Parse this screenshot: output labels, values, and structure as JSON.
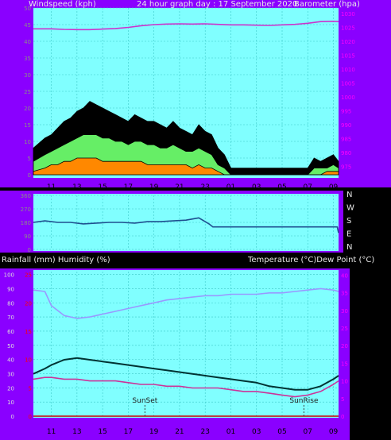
{
  "colors": {
    "background": "#000000",
    "frame": "#8a00ff",
    "plot_bg": "#80ffff",
    "grid": "#3cc8c8",
    "left_ticks": "#8a8a8a",
    "right_ticks": "#ff00ff",
    "rain_ticks": "#ff0000",
    "header_text": "#e8e8e8",
    "axis_text": "#000000"
  },
  "top_panel": {
    "left_title": "Windspeed (kph)",
    "center_title": "24 hour graph day : 17 September 2020",
    "right_title": "Barometer (hpa)"
  },
  "middle_panel": {
    "compass": [
      "N",
      "W",
      "S",
      "E",
      "N"
    ]
  },
  "bottom_panel": {
    "left_title": "Rainfall (mm)  Humidity (%)",
    "right_title": "Temperature (°C)Dew Point (°C)",
    "sunset_label": "SunSet",
    "sunrise_label": "SunRise"
  },
  "chart_data": [
    {
      "type": "line",
      "title": "",
      "y_left_label": "Windspeed (kph)",
      "y_right_label": "Barometer (hpa)",
      "x_hours": [
        "11",
        "13",
        "15",
        "17",
        "19",
        "21",
        "23",
        "01",
        "03",
        "05",
        "07",
        "09"
      ],
      "ylim_left": [
        0,
        50
      ],
      "yticks_left": [
        0,
        5,
        10,
        15,
        20,
        25,
        30,
        35,
        40,
        45,
        50
      ],
      "ylim_right": [
        972,
        1032
      ],
      "yticks_right": [
        975,
        980,
        985,
        990,
        995,
        1000,
        1005,
        1010,
        1015,
        1020,
        1025,
        1030
      ],
      "series": [
        {
          "name": "Barometer",
          "color": "#cc33cc",
          "axis": "right",
          "x": [
            9.6,
            11,
            12,
            13,
            14,
            15,
            16,
            17,
            18,
            19,
            20,
            21,
            22,
            23,
            24,
            25,
            26,
            27,
            28,
            29,
            30,
            31,
            32,
            33,
            33.4
          ],
          "y": [
            1024.5,
            1024.5,
            1024.3,
            1024.2,
            1024.2,
            1024.4,
            1024.6,
            1025,
            1025.6,
            1026,
            1026.2,
            1026.3,
            1026.2,
            1026.3,
            1026.1,
            1025.9,
            1025.9,
            1025.8,
            1025.7,
            1025.9,
            1026.1,
            1026.5,
            1027.1,
            1027.2,
            1027.1
          ]
        },
        {
          "name": "Wind Gust",
          "color": "#000000",
          "axis": "left",
          "x": [
            9.6,
            10.5,
            11,
            11.5,
            12,
            12.5,
            13,
            13.5,
            14,
            14.5,
            15,
            15.5,
            16,
            16.5,
            17,
            17.5,
            18,
            18.5,
            19,
            19.5,
            20,
            20.5,
            21,
            21.5,
            22,
            22.5,
            23,
            23.5,
            24,
            24.5,
            25,
            25.5,
            26,
            26.5,
            27,
            27.5,
            28,
            28.5,
            29,
            29.5,
            30,
            30.5,
            31,
            31.5,
            32,
            32.5,
            33,
            33.4
          ],
          "y": [
            8,
            11,
            12,
            14,
            16,
            17,
            19,
            20,
            22,
            21,
            20,
            19,
            18,
            17,
            16,
            18,
            17,
            16,
            16,
            15,
            14,
            16,
            14,
            13,
            12,
            15,
            13,
            12,
            8,
            6,
            2,
            2,
            2,
            2,
            2,
            2,
            2,
            2,
            2,
            2,
            2,
            2,
            2,
            5,
            4,
            5,
            6,
            4
          ]
        },
        {
          "name": "Wind Average",
          "color": "#66ee66",
          "axis": "left",
          "x": [
            9.6,
            10.5,
            11,
            11.5,
            12,
            12.5,
            13,
            13.5,
            14,
            14.5,
            15,
            15.5,
            16,
            16.5,
            17,
            17.5,
            18,
            18.5,
            19,
            19.5,
            20,
            20.5,
            21,
            21.5,
            22,
            22.5,
            23,
            23.5,
            24,
            24.5,
            25,
            25.5,
            26,
            26.5,
            27,
            27.5,
            28,
            28.5,
            29,
            29.5,
            30,
            30.5,
            31,
            31.5,
            32,
            32.5,
            33,
            33.4
          ],
          "y": [
            4,
            6,
            7,
            8,
            9,
            10,
            11,
            12,
            12,
            12,
            11,
            11,
            10,
            10,
            9,
            10,
            10,
            9,
            9,
            8,
            8,
            9,
            8,
            7,
            7,
            8,
            7,
            6,
            3,
            2,
            0,
            0,
            0,
            0,
            0,
            0,
            0,
            0,
            0,
            0,
            0,
            0,
            0,
            2,
            2,
            2,
            3,
            2
          ]
        },
        {
          "name": "Wind Lull",
          "color": "#ff8800",
          "axis": "left",
          "x": [
            9.6,
            10.5,
            11,
            11.5,
            12,
            12.5,
            13,
            13.5,
            14,
            14.5,
            15,
            15.5,
            16,
            16.5,
            17,
            17.5,
            18,
            18.5,
            19,
            19.5,
            20,
            20.5,
            21,
            21.5,
            22,
            22.5,
            23,
            23.5,
            24,
            24.5,
            25,
            25.5,
            26,
            26.5,
            27,
            27.5,
            28,
            28.5,
            29,
            29.5,
            30,
            30.5,
            31,
            31.5,
            32,
            32.5,
            33,
            33.4
          ],
          "y": [
            1,
            2,
            3,
            3,
            4,
            4,
            5,
            5,
            5,
            5,
            4,
            4,
            4,
            4,
            4,
            4,
            4,
            3,
            3,
            3,
            3,
            3,
            3,
            3,
            2,
            3,
            2,
            2,
            1,
            0,
            0,
            0,
            0,
            0,
            0,
            0,
            0,
            0,
            0,
            0,
            0,
            0,
            0,
            0,
            0,
            1,
            1,
            1
          ]
        }
      ]
    },
    {
      "type": "line",
      "title": "",
      "ylim": [
        0,
        360
      ],
      "yticks": [
        0,
        90,
        180,
        270,
        360
      ],
      "series": [
        {
          "name": "Wind Direction",
          "color": "#1f4f8f",
          "x": [
            9.6,
            10.5,
            11.5,
            12.5,
            13.5,
            14.5,
            15.5,
            16.5,
            17.5,
            18.5,
            19.5,
            20.5,
            21.5,
            22.5,
            23,
            23.3,
            23.6,
            24,
            25,
            26,
            27,
            28,
            29,
            30,
            31,
            32,
            33,
            33.3,
            33.4
          ],
          "y": [
            180,
            190,
            180,
            180,
            170,
            175,
            180,
            180,
            175,
            185,
            185,
            190,
            195,
            210,
            185,
            170,
            150,
            150,
            150,
            150,
            150,
            150,
            150,
            150,
            150,
            150,
            150,
            150,
            110
          ]
        }
      ]
    },
    {
      "type": "line",
      "title": "",
      "y_left_label": "Rainfall (mm)  Humidity (%)",
      "y_right_label": "Temperature (°C)Dew Point (°C)",
      "ylim_left": [
        0,
        102
      ],
      "yticks_left": [
        0,
        10,
        20,
        30,
        40,
        50,
        60,
        70,
        80,
        90,
        100
      ],
      "ylim_rain": [
        0,
        25.5
      ],
      "yticks_rain": [
        0,
        5,
        10,
        15,
        20,
        25
      ],
      "ylim_right": [
        0,
        41
      ],
      "yticks_right": [
        0,
        5,
        10,
        15,
        20,
        25,
        30,
        35,
        40
      ],
      "series": [
        {
          "name": "Humidity",
          "color": "#9999ff",
          "axis": "left",
          "x": [
            9.6,
            10.5,
            11,
            12,
            13,
            14,
            15,
            16,
            17,
            18,
            19,
            20,
            21,
            22,
            23,
            24,
            25,
            26,
            27,
            28,
            29,
            30,
            31,
            32,
            33,
            33.4
          ],
          "y": [
            89,
            88,
            78,
            71,
            69,
            70,
            72,
            74,
            76,
            78,
            80,
            82,
            83,
            84,
            85,
            85,
            86,
            86,
            86,
            87,
            87,
            88,
            89,
            90,
            89,
            88
          ]
        },
        {
          "name": "Temperature",
          "color": "#003333",
          "axis": "right",
          "x": [
            9.6,
            10.5,
            11,
            12,
            13,
            14,
            15,
            16,
            17,
            18,
            19,
            20,
            21,
            22,
            23,
            24,
            25,
            26,
            27,
            28,
            29,
            30,
            31,
            32,
            33,
            33.4
          ],
          "y": [
            12,
            13.5,
            14.5,
            16,
            16.5,
            16,
            15.5,
            15,
            14.5,
            14,
            13.5,
            13,
            12.5,
            12,
            11.5,
            11,
            10.5,
            10,
            9.5,
            8.5,
            8,
            7.5,
            7.5,
            8.5,
            10.5,
            11.5
          ]
        },
        {
          "name": "Dew Point",
          "color": "#cc3399",
          "axis": "right",
          "x": [
            9.6,
            10.5,
            11,
            12,
            13,
            14,
            15,
            16,
            17,
            18,
            19,
            20,
            21,
            22,
            23,
            24,
            25,
            26,
            27,
            28,
            29,
            30,
            31,
            32,
            33,
            33.4
          ],
          "y": [
            10.5,
            11,
            11,
            10.5,
            10.5,
            10,
            10,
            10,
            9.5,
            9,
            9,
            8.5,
            8.5,
            8,
            8,
            8,
            7.5,
            7,
            7,
            6.5,
            6,
            5.5,
            6,
            7,
            9,
            10
          ]
        },
        {
          "name": "Rainfall",
          "color": "#cc0000",
          "axis": "rain",
          "x": [
            9.6,
            33.4
          ],
          "y": [
            0,
            0
          ]
        }
      ],
      "sunset_hour": 18.3,
      "sunrise_hour": 30.7
    }
  ]
}
